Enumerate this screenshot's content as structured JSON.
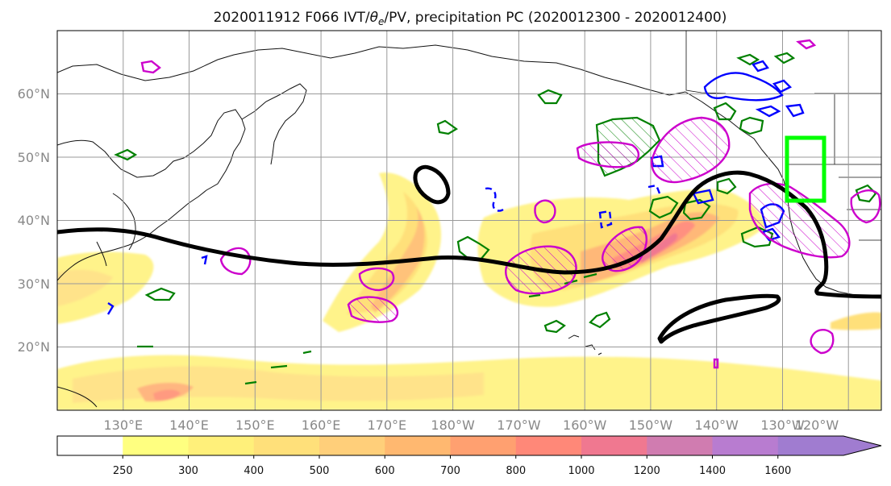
{
  "title": {
    "prefix": "2020011912 F066 IVT/",
    "theta_symbol": "θ",
    "theta_sub": "e",
    "suffix": "/PV, precipitation PC (2020012300 - 2020012400)"
  },
  "map": {
    "projection": "PlateCarree",
    "lon_range_east": [
      120,
      245
    ],
    "lat_range": [
      10,
      70
    ],
    "latitude_labels": [
      "60°N",
      "50°N",
      "40°N",
      "30°N",
      "20°N"
    ],
    "longitude_labels": [
      "130°E",
      "140°E",
      "150°E",
      "160°E",
      "170°E",
      "180°W",
      "170°W",
      "160°W",
      "150°W",
      "140°W",
      "130°W",
      "120°W"
    ],
    "gridlines": true
  },
  "overlays": {
    "ivt_shading": "IVT filled contours (yellow–orange–red)",
    "pv_contour_color": "#000000",
    "precip_pc_positive_color": "#cc00cc",
    "precip_pc_negative_color": "#0000ff",
    "theta_e_contour_color": "#008000",
    "target_box_color": "#00ff00",
    "target_box_lon": [
      -126,
      -120
    ],
    "target_box_lat": [
      43,
      53
    ]
  },
  "colorbar": {
    "levels": [
      "250",
      "300",
      "400",
      "500",
      "600",
      "700",
      "800",
      "1000",
      "1200",
      "1400",
      "1600"
    ],
    "colors": [
      "#ffffff",
      "#ffff80",
      "#fff07a",
      "#ffe07a",
      "#ffcf7a",
      "#ffb870",
      "#ffa070",
      "#ff8878",
      "#f07890",
      "#d07cb0",
      "#b87cd0",
      "#a07cd0"
    ],
    "extend": "max"
  }
}
